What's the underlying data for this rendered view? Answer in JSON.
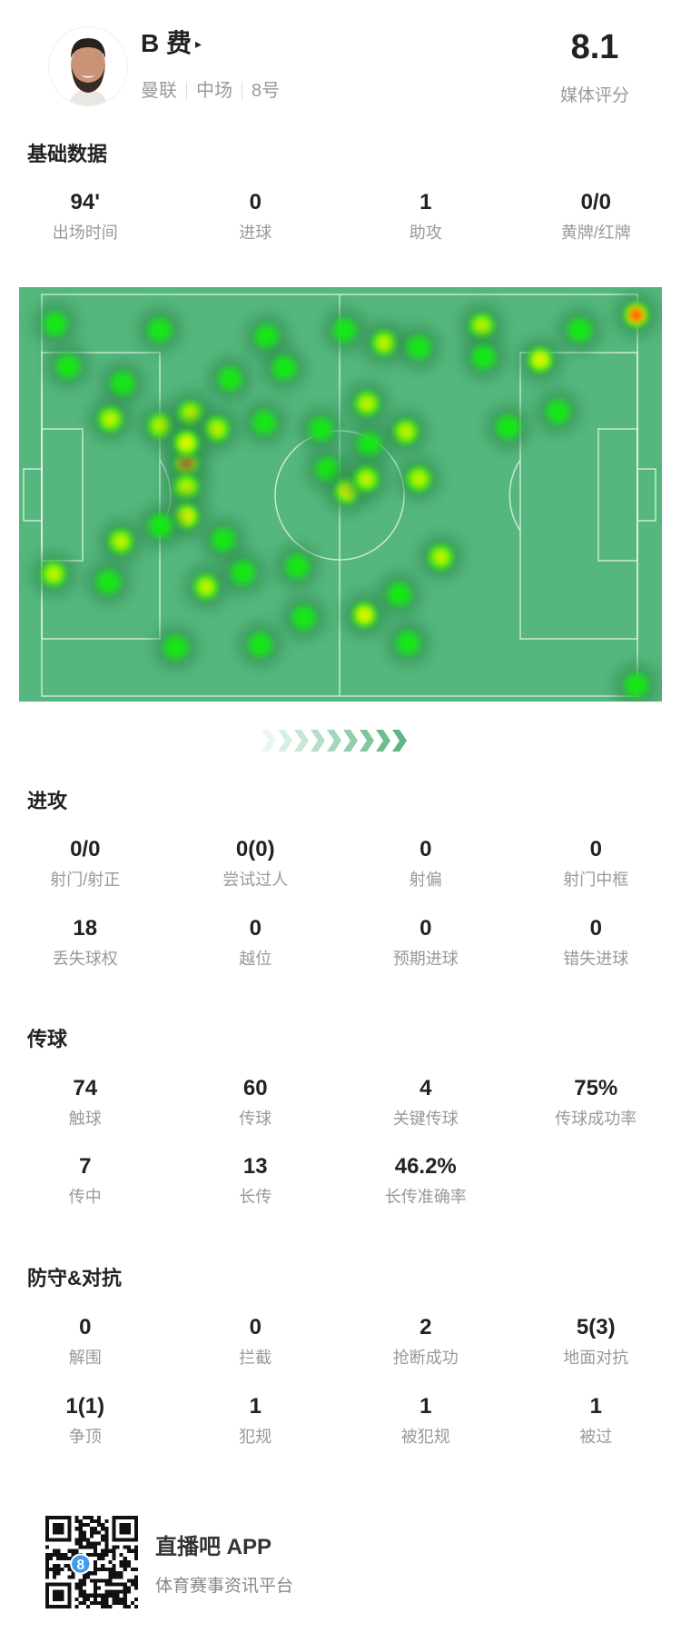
{
  "player": {
    "name": "B 费",
    "play_icon": "▸",
    "team": "曼联",
    "position": "中场",
    "number": "8号",
    "rating": "8.1",
    "rating_label": "媒体评分"
  },
  "basic": {
    "title": "基础数据",
    "stats": [
      {
        "value": "94'",
        "label": "出场时间"
      },
      {
        "value": "0",
        "label": "进球"
      },
      {
        "value": "1",
        "label": "助攻"
      },
      {
        "value": "0/0",
        "label": "黄牌/红牌"
      }
    ]
  },
  "attack": {
    "title": "进攻",
    "stats": [
      {
        "value": "0/0",
        "label": "射门/射正"
      },
      {
        "value": "0(0)",
        "label": "尝试过人"
      },
      {
        "value": "0",
        "label": "射偏"
      },
      {
        "value": "0",
        "label": "射门中框"
      },
      {
        "value": "18",
        "label": "丢失球权"
      },
      {
        "value": "0",
        "label": "越位"
      },
      {
        "value": "0",
        "label": "预期进球"
      },
      {
        "value": "0",
        "label": "错失进球"
      }
    ]
  },
  "passing": {
    "title": "传球",
    "stats": [
      {
        "value": "74",
        "label": "触球"
      },
      {
        "value": "60",
        "label": "传球"
      },
      {
        "value": "4",
        "label": "关键传球"
      },
      {
        "value": "75%",
        "label": "传球成功率"
      },
      {
        "value": "7",
        "label": "传中"
      },
      {
        "value": "13",
        "label": "长传"
      },
      {
        "value": "46.2%",
        "label": "长传准确率"
      }
    ]
  },
  "defense": {
    "title": "防守&对抗",
    "stats": [
      {
        "value": "0",
        "label": "解围"
      },
      {
        "value": "0",
        "label": "拦截"
      },
      {
        "value": "2",
        "label": "抢断成功"
      },
      {
        "value": "5(3)",
        "label": "地面对抗"
      },
      {
        "value": "1(1)",
        "label": "争顶"
      },
      {
        "value": "1",
        "label": "犯规"
      },
      {
        "value": "1",
        "label": "被犯规"
      },
      {
        "value": "1",
        "label": "被过"
      }
    ]
  },
  "footer": {
    "app_name": "直播吧 APP",
    "tagline": "体育赛事资讯平台",
    "qr_badge": "8"
  },
  "colors": {
    "pitch": "#55b77d",
    "line": "#e8f5ec",
    "heat_low": "#19e619",
    "heat_mid": "#d6f500",
    "heat_high": "#ff2a00",
    "arrow": "#5cb583",
    "qr_badge": "#3d9bf0"
  },
  "chart_data": {
    "type": "heatmap",
    "x_range": [
      0,
      100
    ],
    "y_range": [
      0,
      100
    ],
    "points": [
      {
        "x": 2.3,
        "y": 7.4,
        "i": 0.3
      },
      {
        "x": 19.8,
        "y": 8.9,
        "i": 0.3
      },
      {
        "x": 37.8,
        "y": 10.5,
        "i": 0.3
      },
      {
        "x": 40.7,
        "y": 18.3,
        "i": 0.4
      },
      {
        "x": 31.6,
        "y": 21,
        "i": 0.3
      },
      {
        "x": 4.4,
        "y": 17.9,
        "i": 0.3
      },
      {
        "x": 13.6,
        "y": 22.2,
        "i": 0.3
      },
      {
        "x": 11.5,
        "y": 31.1,
        "i": 0.6
      },
      {
        "x": 19.9,
        "y": 32.7,
        "i": 0.6
      },
      {
        "x": 25,
        "y": 29.6,
        "i": 0.65
      },
      {
        "x": 29.4,
        "y": 33.5,
        "i": 0.6
      },
      {
        "x": 24.3,
        "y": 42,
        "i": 1.0
      },
      {
        "x": 24.3,
        "y": 37,
        "i": 0.7
      },
      {
        "x": 24.3,
        "y": 48,
        "i": 0.6
      },
      {
        "x": 24.3,
        "y": 55.3,
        "i": 0.75
      },
      {
        "x": 37.4,
        "y": 31.9,
        "i": 0.4
      },
      {
        "x": 46.9,
        "y": 33.5,
        "i": 0.3
      },
      {
        "x": 50.9,
        "y": 8.9,
        "i": 0.3
      },
      {
        "x": 57.5,
        "y": 12.1,
        "i": 0.6
      },
      {
        "x": 63.3,
        "y": 13.2,
        "i": 0.3
      },
      {
        "x": 73.9,
        "y": 7.8,
        "i": 0.6
      },
      {
        "x": 74.2,
        "y": 15.6,
        "i": 0.3
      },
      {
        "x": 83.7,
        "y": 16.3,
        "i": 0.8
      },
      {
        "x": 90.3,
        "y": 8.9,
        "i": 0.3
      },
      {
        "x": 99.8,
        "y": 5.1,
        "i": 1.0
      },
      {
        "x": 54.6,
        "y": 27.2,
        "i": 0.6
      },
      {
        "x": 61.1,
        "y": 34.2,
        "i": 0.5
      },
      {
        "x": 55,
        "y": 37.4,
        "i": 0.3
      },
      {
        "x": 63.3,
        "y": 45.9,
        "i": 0.6
      },
      {
        "x": 78.3,
        "y": 33.1,
        "i": 0.3
      },
      {
        "x": 86.7,
        "y": 29.2,
        "i": 0.3
      },
      {
        "x": 48,
        "y": 43.6,
        "i": 0.3
      },
      {
        "x": 51.3,
        "y": 49,
        "i": 0.7
      },
      {
        "x": 54.5,
        "y": 46,
        "i": 0.6
      },
      {
        "x": 67,
        "y": 65.4,
        "i": 0.6
      },
      {
        "x": 13.3,
        "y": 61.5,
        "i": 0.6
      },
      {
        "x": 2,
        "y": 69.6,
        "i": 0.6
      },
      {
        "x": 11.2,
        "y": 71.6,
        "i": 0.35
      },
      {
        "x": 30.5,
        "y": 61.1,
        "i": 0.3
      },
      {
        "x": 27.6,
        "y": 72.8,
        "i": 0.6
      },
      {
        "x": 33.8,
        "y": 69.3,
        "i": 0.3
      },
      {
        "x": 42.9,
        "y": 67.7,
        "i": 0.3
      },
      {
        "x": 44,
        "y": 80.5,
        "i": 0.3
      },
      {
        "x": 54.2,
        "y": 79.8,
        "i": 0.75
      },
      {
        "x": 60,
        "y": 74.7,
        "i": 0.35
      },
      {
        "x": 61.5,
        "y": 86.8,
        "i": 0.4
      },
      {
        "x": 36.7,
        "y": 87.2,
        "i": 0.3
      },
      {
        "x": 22.5,
        "y": 87.9,
        "i": 0.3
      },
      {
        "x": 99.8,
        "y": 97.3,
        "i": 0.3
      },
      {
        "x": 19.9,
        "y": 57.6,
        "i": 0.3
      }
    ]
  }
}
